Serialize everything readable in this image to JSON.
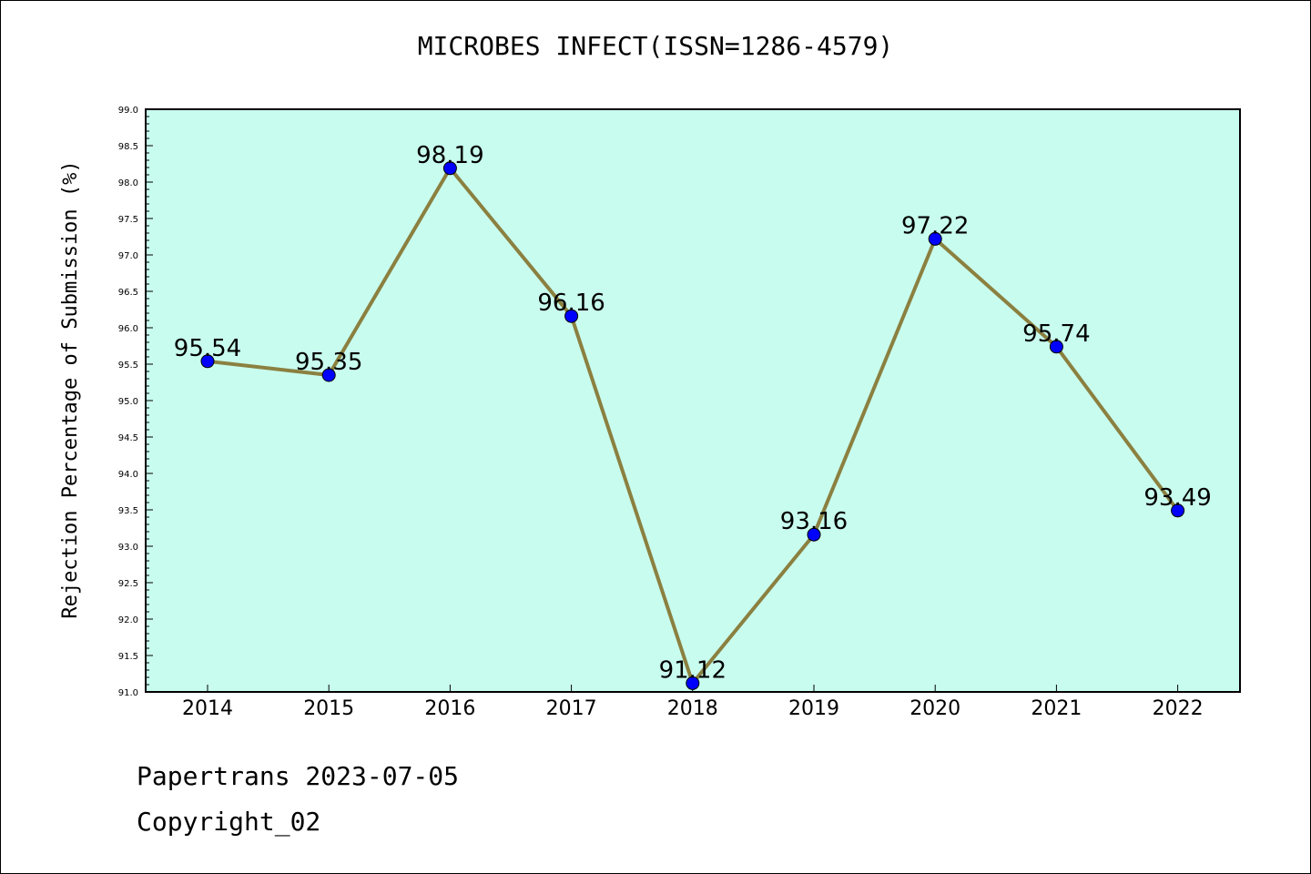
{
  "chart_data": {
    "type": "line",
    "title": "MICROBES INFECT(ISSN=1286-4579)",
    "ylabel": "Rejection Percentage of Submission (%)",
    "xlabel": "",
    "categories": [
      "2014",
      "2015",
      "2016",
      "2017",
      "2018",
      "2019",
      "2020",
      "2021",
      "2022"
    ],
    "values": [
      95.54,
      95.35,
      98.19,
      96.16,
      91.12,
      93.16,
      97.22,
      95.74,
      93.49
    ],
    "data_labels": [
      "95.54",
      "95.35",
      "98.19",
      "96.16",
      "91.12",
      "93.16",
      "97.22",
      "95.74",
      "93.49"
    ],
    "ylim": [
      91.0,
      99.0
    ],
    "yticks": [
      "91.0",
      "91.5",
      "92.0",
      "92.5",
      "93.0",
      "93.5",
      "94.0",
      "94.5",
      "95.0",
      "95.5",
      "96.0",
      "96.5",
      "97.0",
      "97.5",
      "98.0",
      "98.5",
      "99.0"
    ],
    "grid": false,
    "legend": "none",
    "colors": {
      "plot_background": "#c8fcee",
      "line": "#8b8040",
      "marker": "#0000ff"
    }
  },
  "footer": {
    "line1": "Papertrans 2023-07-05",
    "line2": "Copyright_02"
  }
}
